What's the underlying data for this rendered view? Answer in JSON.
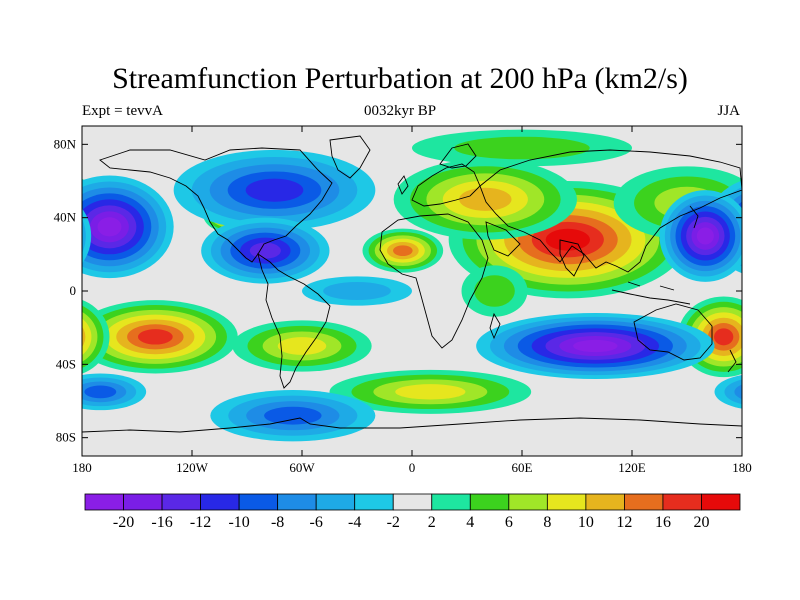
{
  "title": "Streamfunction Perturbation at 200 hPa (km2/s)",
  "subtitle_left": "Expt = tevvA",
  "subtitle_center": "0032kyr BP",
  "subtitle_right": "JJA",
  "lat_ticks": [
    "80N",
    "40N",
    "0",
    "40S",
    "80S"
  ],
  "lon_ticks": [
    "180",
    "120W",
    "60W",
    "0",
    "60E",
    "120E",
    "180"
  ],
  "colorbar": {
    "labels": [
      "-20",
      "-16",
      "-12",
      "-10",
      "-8",
      "-6",
      "-4",
      "-2",
      "2",
      "4",
      "6",
      "8",
      "10",
      "12",
      "16",
      "20"
    ],
    "colors": [
      "#8a1ee6",
      "#7a1ee6",
      "#5a28e6",
      "#2828e6",
      "#0a5ae6",
      "#1e8ce6",
      "#1eaae6",
      "#1ec8e6",
      "#e6e6e6",
      "#1ee6a0",
      "#3cd21e",
      "#a0e628",
      "#e6e61e",
      "#e6b41e",
      "#e66e1e",
      "#e62d1e",
      "#e60a0a"
    ]
  },
  "anomalies": [
    {
      "name": "asia-high",
      "lon": 85,
      "lat": 28,
      "rx": 65,
      "ry": 32,
      "level": 20
    },
    {
      "name": "europe-high",
      "lon": 40,
      "lat": 50,
      "rx": 50,
      "ry": 22,
      "level": 10
    },
    {
      "name": "arctic-high",
      "lon": 60,
      "lat": 78,
      "rx": 60,
      "ry": 10,
      "level": 4
    },
    {
      "name": "west-africa-high",
      "lon": -5,
      "lat": 22,
      "rx": 22,
      "ry": 12,
      "level": 12
    },
    {
      "name": "north-america-high",
      "lon": -100,
      "lat": 42,
      "rx": 14,
      "ry": 10,
      "level": 16
    },
    {
      "name": "west-pacific-high",
      "lon": 150,
      "lat": 48,
      "rx": 40,
      "ry": 20,
      "level": 6
    },
    {
      "name": "south-pacific-high",
      "lon": -140,
      "lat": -25,
      "rx": 45,
      "ry": 20,
      "level": 16
    },
    {
      "name": "south-america-high",
      "lon": -60,
      "lat": -30,
      "rx": 38,
      "ry": 14,
      "level": 8
    },
    {
      "name": "south-atlantic-high",
      "lon": 10,
      "lat": -55,
      "rx": 55,
      "ry": 12,
      "level": 8
    },
    {
      "name": "australia-east-high",
      "lon": 170,
      "lat": -25,
      "rx": 25,
      "ry": 22,
      "level": 16
    },
    {
      "name": "east-africa-high",
      "lon": 45,
      "lat": 0,
      "rx": 18,
      "ry": 14,
      "level": 4
    },
    {
      "name": "north-pacific-low",
      "lon": -165,
      "lat": 35,
      "rx": 35,
      "ry": 28,
      "level": -20
    },
    {
      "name": "east-pacific-low",
      "lon": 160,
      "lat": 30,
      "rx": 25,
      "ry": 25,
      "level": -20
    },
    {
      "name": "north-atlantic-low",
      "lon": -75,
      "lat": 55,
      "rx": 55,
      "ry": 22,
      "level": -10
    },
    {
      "name": "caribbean-low",
      "lon": -80,
      "lat": 22,
      "rx": 35,
      "ry": 18,
      "level": -12
    },
    {
      "name": "indian-ocean-low",
      "lon": 100,
      "lat": -30,
      "rx": 65,
      "ry": 18,
      "level": -20
    },
    {
      "name": "antarctic-low",
      "lon": -65,
      "lat": -68,
      "rx": 45,
      "ry": 14,
      "level": -8
    },
    {
      "name": "south-east-pacific-low",
      "lon": -170,
      "lat": -55,
      "rx": 25,
      "ry": 10,
      "level": -8
    },
    {
      "name": "tropical-atlantic-low",
      "lon": -30,
      "lat": 0,
      "rx": 30,
      "ry": 8,
      "level": -4
    }
  ]
}
